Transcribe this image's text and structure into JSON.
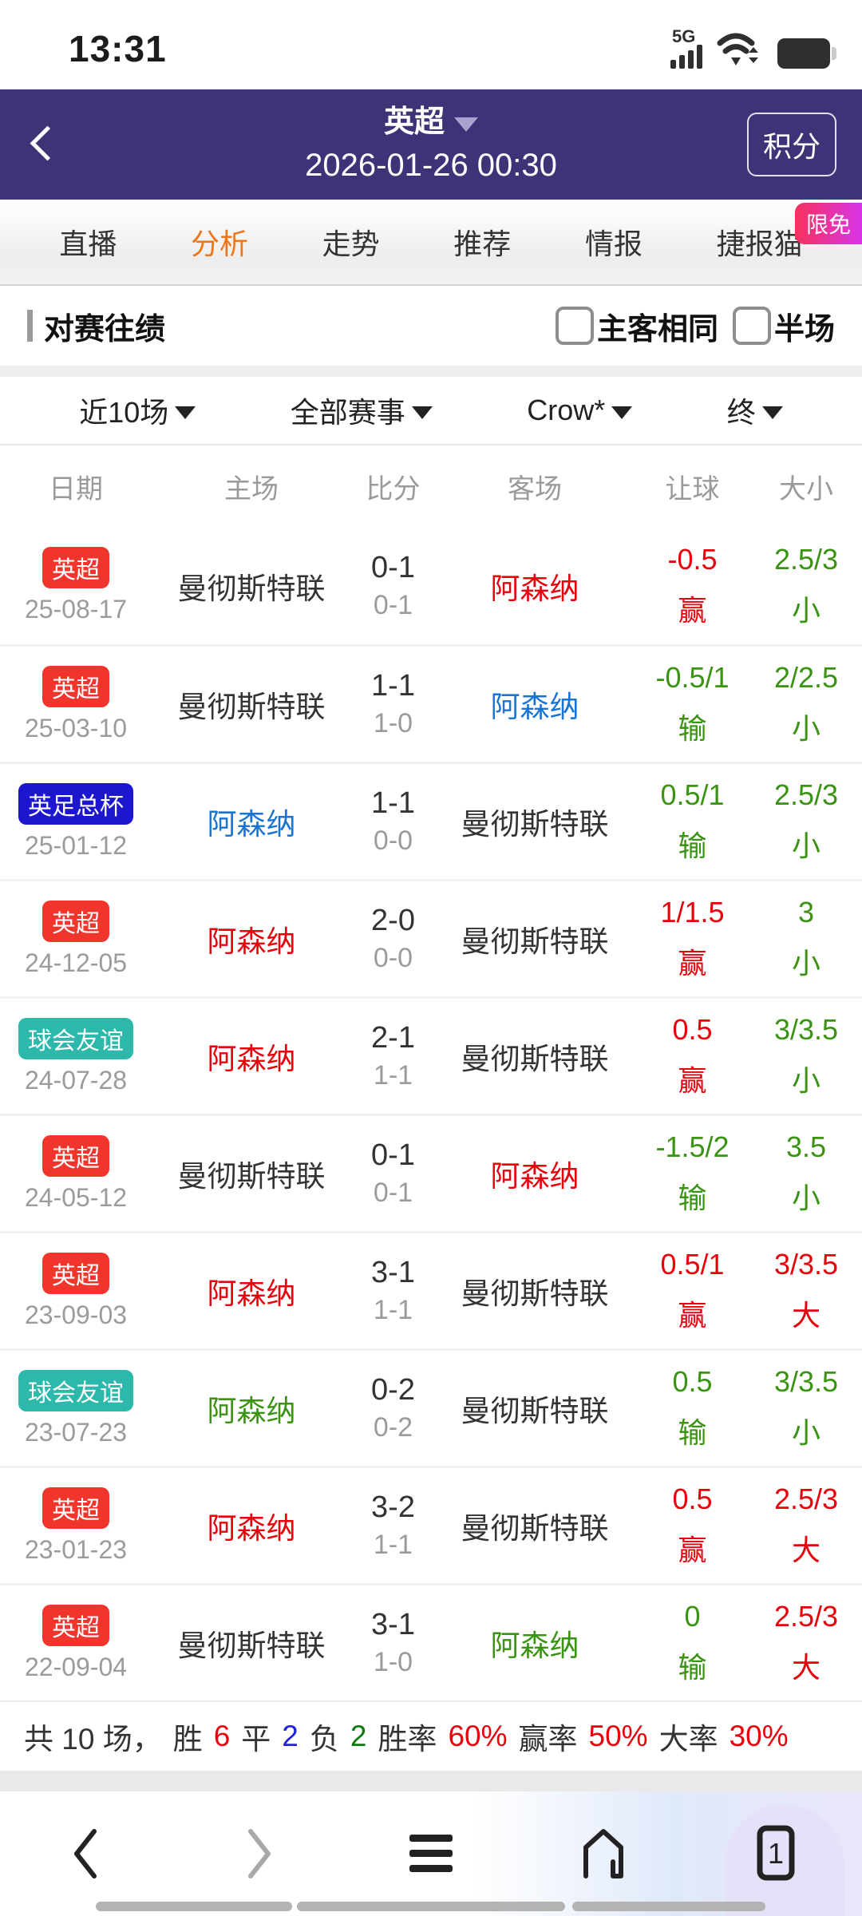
{
  "status_bar": {
    "time": "13:31",
    "network_label": "5G"
  },
  "header": {
    "title": "英超",
    "datetime": "2026-01-26 00:30",
    "action_label": "积分"
  },
  "promo_badge": "限免",
  "tabs": [
    {
      "label": "直播",
      "active": false
    },
    {
      "label": "分析",
      "active": true
    },
    {
      "label": "走势",
      "active": false
    },
    {
      "label": "推荐",
      "active": false
    },
    {
      "label": "情报",
      "active": false
    },
    {
      "label": "捷报猫",
      "active": false
    }
  ],
  "section": {
    "title": "对赛往绩",
    "checkboxes": [
      {
        "label": "主客相同",
        "checked": false
      },
      {
        "label": "半场",
        "checked": false
      }
    ]
  },
  "filters": [
    {
      "label": "近10场"
    },
    {
      "label": "全部赛事"
    },
    {
      "label": "Crow*"
    },
    {
      "label": "终"
    }
  ],
  "table": {
    "columns": [
      "日期",
      "主场",
      "比分",
      "客场",
      "让球",
      "大小"
    ],
    "rows": [
      {
        "league": "英超",
        "league_bg": "#f0352c",
        "date": "25-08-17",
        "home": "曼彻斯特联",
        "home_color": "#333333",
        "score": "0-1",
        "half_score": "0-1",
        "away": "阿森纳",
        "away_color": "#e8000b",
        "handicap": "-0.5",
        "handicap_result": "赢",
        "handicap_color": "#e8000b",
        "overunder": "2.5/3",
        "overunder_result": "小",
        "overunder_color": "#3a9313"
      },
      {
        "league": "英超",
        "league_bg": "#f0352c",
        "date": "25-03-10",
        "home": "曼彻斯特联",
        "home_color": "#333333",
        "score": "1-1",
        "half_score": "1-0",
        "away": "阿森纳",
        "away_color": "#1a74d4",
        "handicap": "-0.5/1",
        "handicap_result": "输",
        "handicap_color": "#3a9313",
        "overunder": "2/2.5",
        "overunder_result": "小",
        "overunder_color": "#3a9313"
      },
      {
        "league": "英足总杯",
        "league_bg": "#1c17cf",
        "date": "25-01-12",
        "home": "阿森纳",
        "home_color": "#1a74d4",
        "score": "1-1",
        "half_score": "0-0",
        "away": "曼彻斯特联",
        "away_color": "#333333",
        "handicap": "0.5/1",
        "handicap_result": "输",
        "handicap_color": "#3a9313",
        "overunder": "2.5/3",
        "overunder_result": "小",
        "overunder_color": "#3a9313"
      },
      {
        "league": "英超",
        "league_bg": "#f0352c",
        "date": "24-12-05",
        "home": "阿森纳",
        "home_color": "#e8000b",
        "score": "2-0",
        "half_score": "0-0",
        "away": "曼彻斯特联",
        "away_color": "#333333",
        "handicap": "1/1.5",
        "handicap_result": "赢",
        "handicap_color": "#e8000b",
        "overunder": "3",
        "overunder_result": "小",
        "overunder_color": "#3a9313"
      },
      {
        "league": "球会友谊",
        "league_bg": "#2cb8ab",
        "date": "24-07-28",
        "home": "阿森纳",
        "home_color": "#e8000b",
        "score": "2-1",
        "half_score": "1-1",
        "away": "曼彻斯特联",
        "away_color": "#333333",
        "handicap": "0.5",
        "handicap_result": "赢",
        "handicap_color": "#e8000b",
        "overunder": "3/3.5",
        "overunder_result": "小",
        "overunder_color": "#3a9313"
      },
      {
        "league": "英超",
        "league_bg": "#f0352c",
        "date": "24-05-12",
        "home": "曼彻斯特联",
        "home_color": "#333333",
        "score": "0-1",
        "half_score": "0-1",
        "away": "阿森纳",
        "away_color": "#e8000b",
        "handicap": "-1.5/2",
        "handicap_result": "输",
        "handicap_color": "#3a9313",
        "overunder": "3.5",
        "overunder_result": "小",
        "overunder_color": "#3a9313"
      },
      {
        "league": "英超",
        "league_bg": "#f0352c",
        "date": "23-09-03",
        "home": "阿森纳",
        "home_color": "#e8000b",
        "score": "3-1",
        "half_score": "1-1",
        "away": "曼彻斯特联",
        "away_color": "#333333",
        "handicap": "0.5/1",
        "handicap_result": "赢",
        "handicap_color": "#e8000b",
        "overunder": "3/3.5",
        "overunder_result": "大",
        "overunder_color": "#e8000b"
      },
      {
        "league": "球会友谊",
        "league_bg": "#2cb8ab",
        "date": "23-07-23",
        "home": "阿森纳",
        "home_color": "#3a9313",
        "score": "0-2",
        "half_score": "0-2",
        "away": "曼彻斯特联",
        "away_color": "#333333",
        "handicap": "0.5",
        "handicap_result": "输",
        "handicap_color": "#3a9313",
        "overunder": "3/3.5",
        "overunder_result": "小",
        "overunder_color": "#3a9313"
      },
      {
        "league": "英超",
        "league_bg": "#f0352c",
        "date": "23-01-23",
        "home": "阿森纳",
        "home_color": "#e8000b",
        "score": "3-2",
        "half_score": "1-1",
        "away": "曼彻斯特联",
        "away_color": "#333333",
        "handicap": "0.5",
        "handicap_result": "赢",
        "handicap_color": "#e8000b",
        "overunder": "2.5/3",
        "overunder_result": "大",
        "overunder_color": "#e8000b"
      },
      {
        "league": "英超",
        "league_bg": "#f0352c",
        "date": "22-09-04",
        "home": "曼彻斯特联",
        "home_color": "#333333",
        "score": "3-1",
        "half_score": "1-0",
        "away": "阿森纳",
        "away_color": "#3a9313",
        "handicap": "0",
        "handicap_result": "输",
        "handicap_color": "#3a9313",
        "overunder": "2.5/3",
        "overunder_result": "大",
        "overunder_color": "#e8000b"
      }
    ]
  },
  "summary": {
    "parts": [
      {
        "text": "共 10 场，",
        "color": "#333333"
      },
      {
        "text": "胜",
        "color": "#333333"
      },
      {
        "text": "6",
        "color": "#e8000b"
      },
      {
        "text": "平",
        "color": "#333333"
      },
      {
        "text": "2",
        "color": "#2222d8"
      },
      {
        "text": "负",
        "color": "#333333"
      },
      {
        "text": "2",
        "color": "#0a7a0a"
      },
      {
        "text": "胜率",
        "color": "#333333"
      },
      {
        "text": "60%",
        "color": "#e8000b"
      },
      {
        "text": "赢率",
        "color": "#333333"
      },
      {
        "text": "50%",
        "color": "#e8000b"
      },
      {
        "text": "大率",
        "color": "#333333"
      },
      {
        "text": "30%",
        "color": "#e8000b"
      }
    ]
  },
  "bottom_nav": {
    "tab_count": "1"
  },
  "colors": {
    "header_purple": "#3e3377",
    "tab_active_orange": "#ee7518",
    "win_red": "#e8000b",
    "loss_green": "#3a9313",
    "draw_blue": "#1a74d4",
    "promo_pink": "#f5315e",
    "promo_magenta": "#d935e8"
  }
}
